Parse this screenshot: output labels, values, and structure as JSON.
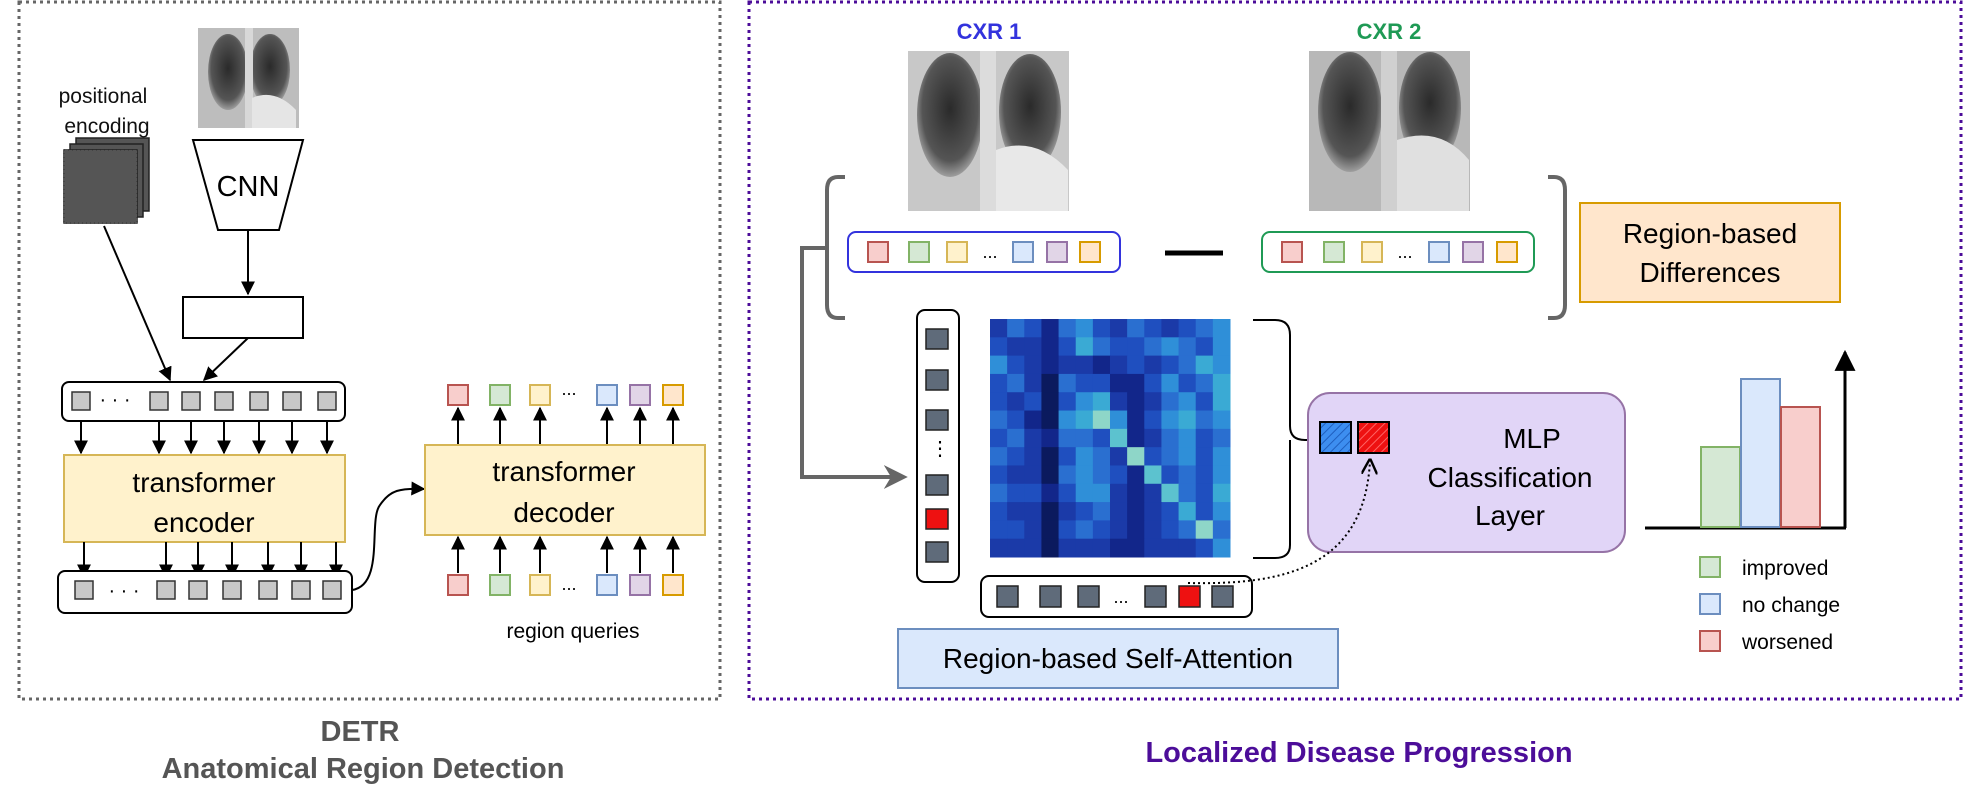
{
  "detr": {
    "positional_encoding_line1": "positional",
    "positional_encoding_line2": "encoding",
    "cnn_label": "CNN",
    "encoder_line1": "transformer",
    "encoder_line2": "encoder",
    "decoder_line1": "transformer",
    "decoder_line2": "decoder",
    "dots": "· · ·",
    "ellipsis": "...",
    "region_queries_label": "region queries",
    "caption_line1": "DETR",
    "caption_line2": "Anatomical Region Detection"
  },
  "progression": {
    "cxr1_label": "CXR 1",
    "cxr2_label": "CXR 2",
    "ellipsis": "...",
    "vertical_ellipsis": "⋮",
    "differences_line1": "Region-based",
    "differences_line2": "Differences",
    "self_attention_label": "Region-based Self-Attention",
    "mlp_line1": "MLP",
    "mlp_line2": "Classification",
    "mlp_line3": "Layer",
    "legend": [
      {
        "label": "improved",
        "color": "#d5e8d4",
        "stroke": "#82b366"
      },
      {
        "label": "no change",
        "color": "#dae8fc",
        "stroke": "#6c8ebf"
      },
      {
        "label": "worsened",
        "color": "#f8cecc",
        "stroke": "#b85450"
      }
    ],
    "caption": "Localized Disease Progression"
  },
  "colors": {
    "detr_caption": "#555555",
    "progression_caption": "#4c0d99",
    "cxr1": "#3333dd",
    "cxr2": "#1f9a55",
    "detr_border": "#666666",
    "progression_border": "#4c0d99",
    "token_gray": "#c8c8c8",
    "token_dark": "#5f6b7a",
    "token_red": "#ee1111",
    "token_blue": "#3d8ef0",
    "transformer_fill": "#fff2cc",
    "transformer_stroke": "#d6b656",
    "differences_fill": "#ffe6cc",
    "differences_stroke": "#d79b00",
    "mlp_fill": "#e1d5f7",
    "mlp_stroke": "#9673a6",
    "self_attention_fill": "#dae8fc",
    "self_attention_stroke": "#6c8ebf"
  }
}
